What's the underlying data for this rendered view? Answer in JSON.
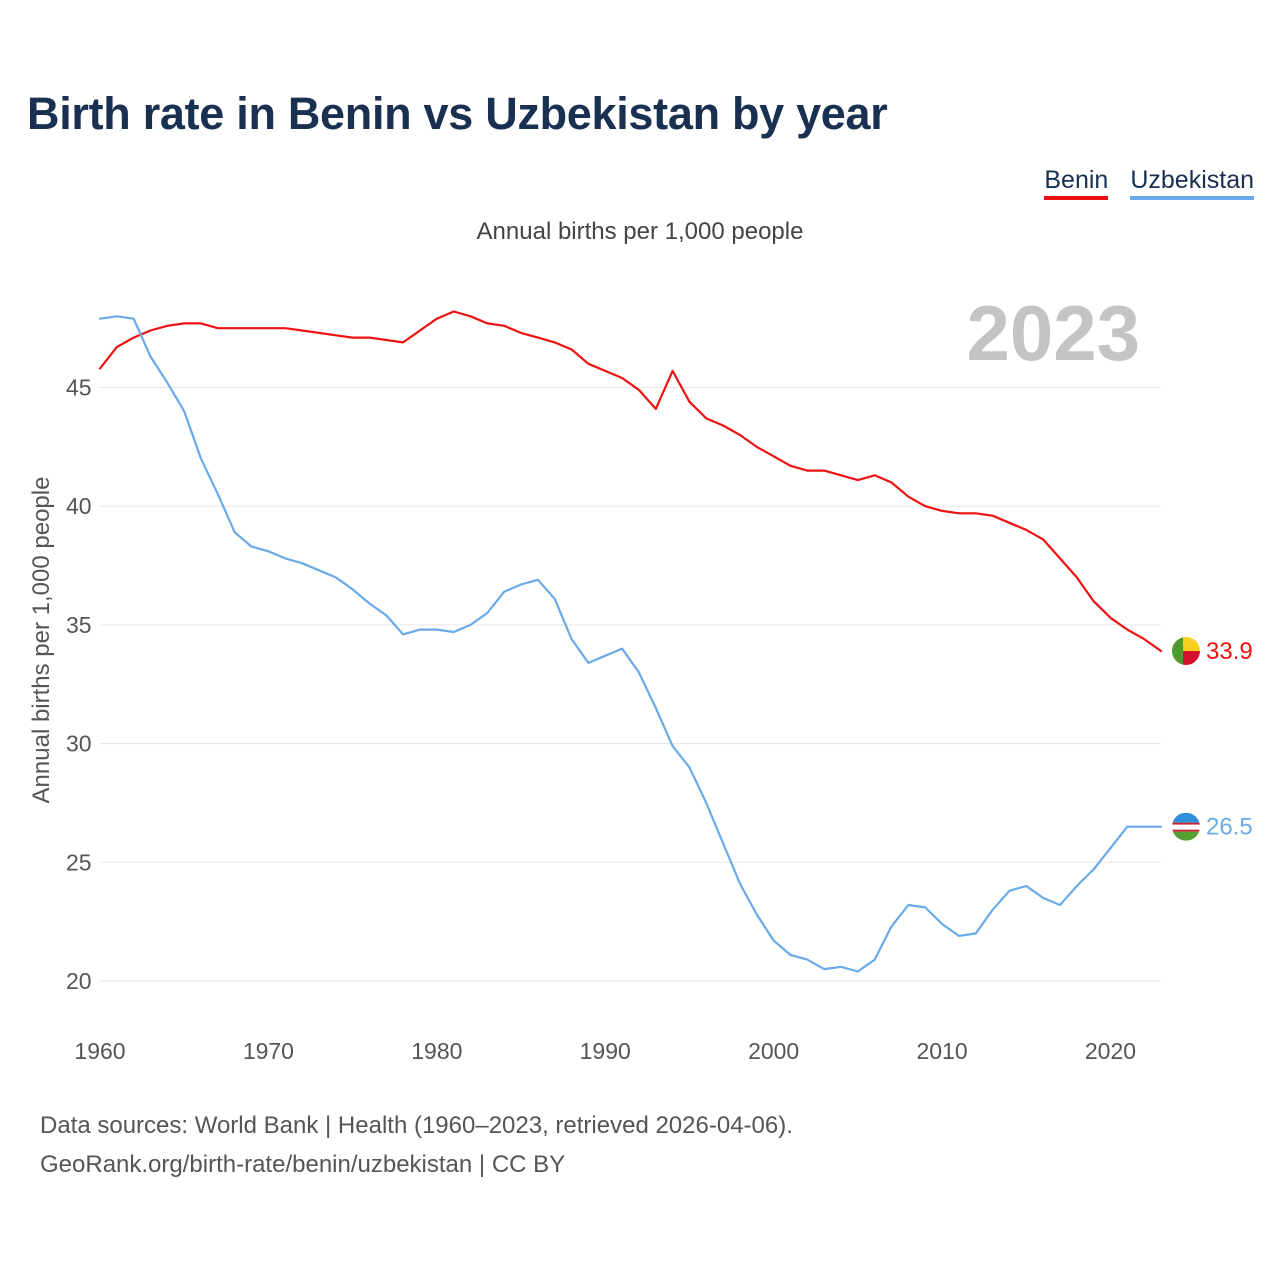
{
  "title": "Birth rate in Benin vs Uzbekistan by year",
  "subtitle": "Annual births per 1,000 people",
  "source_line1": "Data sources: World Bank | Health (1960–2023, retrieved 2026-04-06).",
  "source_line2": "GeoRank.org/birth-rate/benin/uzbekistan | CC BY",
  "colors": {
    "benin": "#ee1111",
    "uzbekistan": "#6aaae8",
    "grid": "#e6e6e6",
    "year": "#c4c4c4"
  },
  "legend": [
    {
      "name": "Benin",
      "color": "#ee1111"
    },
    {
      "name": "Uzbekistan",
      "color": "#6aaae8"
    }
  ],
  "chart_data": {
    "type": "line",
    "title": "Birth rate in Benin vs Uzbekistan by year",
    "ylabel": "Annual births per 1,000 people",
    "xlabel": "",
    "year_label": "2023",
    "xlim": [
      1960,
      2023
    ],
    "ylim": [
      18,
      49
    ],
    "xticks": [
      1960,
      1970,
      1980,
      1990,
      2000,
      2010,
      2020
    ],
    "yticks": [
      20,
      25,
      30,
      35,
      40,
      45
    ],
    "grid": true,
    "x": [
      1960,
      1961,
      1962,
      1963,
      1964,
      1965,
      1966,
      1967,
      1968,
      1969,
      1970,
      1971,
      1972,
      1973,
      1974,
      1975,
      1976,
      1977,
      1978,
      1979,
      1980,
      1981,
      1982,
      1983,
      1984,
      1985,
      1986,
      1987,
      1988,
      1989,
      1990,
      1991,
      1992,
      1993,
      1994,
      1995,
      1996,
      1997,
      1998,
      1999,
      2000,
      2001,
      2002,
      2003,
      2004,
      2005,
      2006,
      2007,
      2008,
      2009,
      2010,
      2011,
      2012,
      2013,
      2014,
      2015,
      2016,
      2017,
      2018,
      2019,
      2020,
      2021,
      2022,
      2023
    ],
    "series": [
      {
        "name": "Benin",
        "color": "#ee1111",
        "end_label": "33.9",
        "values": [
          45.8,
          46.7,
          47.1,
          47.4,
          47.6,
          47.7,
          47.7,
          47.5,
          47.5,
          47.5,
          47.5,
          47.5,
          47.4,
          47.3,
          47.2,
          47.1,
          47.1,
          47.0,
          46.9,
          47.4,
          47.9,
          48.2,
          48.0,
          47.7,
          47.6,
          47.3,
          47.1,
          46.9,
          46.6,
          46.0,
          45.7,
          45.4,
          44.9,
          44.1,
          45.7,
          44.4,
          43.7,
          43.4,
          43.0,
          42.5,
          42.1,
          41.7,
          41.5,
          41.5,
          41.3,
          41.1,
          41.3,
          41.0,
          40.4,
          40.0,
          39.8,
          39.7,
          39.7,
          39.6,
          39.3,
          39.0,
          38.6,
          37.8,
          37.0,
          36.0,
          35.3,
          34.8,
          34.4,
          33.9
        ]
      },
      {
        "name": "Uzbekistan",
        "color": "#6aaae8",
        "end_label": "26.5",
        "values": [
          47.9,
          48.0,
          47.9,
          46.3,
          45.2,
          44.0,
          42.0,
          40.5,
          38.9,
          38.3,
          38.1,
          37.8,
          37.6,
          37.3,
          37.0,
          36.5,
          35.9,
          35.4,
          34.6,
          34.8,
          34.8,
          34.7,
          35.0,
          35.5,
          36.4,
          36.7,
          36.9,
          36.1,
          34.4,
          33.4,
          33.7,
          34.0,
          33.0,
          31.5,
          29.9,
          29.0,
          27.5,
          25.8,
          24.1,
          22.8,
          21.7,
          21.1,
          20.9,
          20.5,
          20.6,
          20.4,
          20.9,
          22.3,
          23.2,
          23.1,
          22.4,
          21.9,
          22.0,
          23.0,
          23.8,
          24.0,
          23.5,
          23.2,
          24.0,
          24.7,
          25.6,
          26.5,
          26.5,
          26.5
        ]
      }
    ]
  }
}
